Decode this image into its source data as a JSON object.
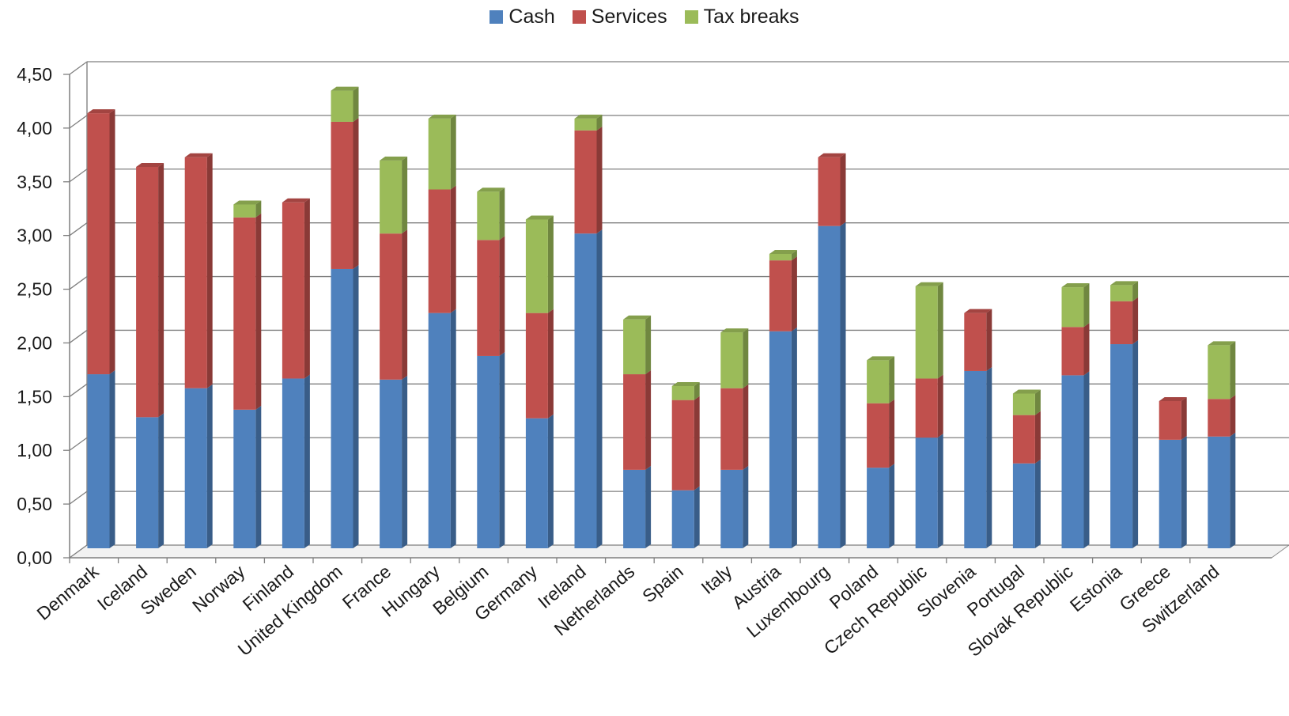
{
  "chart_data": {
    "type": "bar",
    "stacked": true,
    "style": "3d-column",
    "categories": [
      "Denmark",
      "Iceland",
      "Sweden",
      "Norway",
      "Finland",
      "United Kingdom",
      "France",
      "Hungary",
      "Belgium",
      "Germany",
      "Ireland",
      "Netherlands",
      "Spain",
      "Italy",
      "Austria",
      "Luxembourg",
      "Poland",
      "Czech Republic",
      "Slovenia",
      "Portugal",
      "Slovak Republic",
      "Estonia",
      "Greece",
      "Switzerland"
    ],
    "series": [
      {
        "name": "Cash",
        "color": "#4F81BD",
        "values": [
          1.62,
          1.22,
          1.49,
          1.29,
          1.58,
          2.6,
          1.57,
          2.19,
          1.79,
          1.21,
          2.93,
          0.73,
          0.54,
          0.73,
          2.02,
          3.0,
          0.75,
          1.03,
          1.65,
          0.79,
          1.61,
          1.9,
          1.01,
          1.04
        ]
      },
      {
        "name": "Services",
        "color": "#C0504D",
        "values": [
          2.43,
          2.33,
          2.15,
          1.79,
          1.64,
          1.37,
          1.36,
          1.15,
          1.08,
          0.98,
          0.96,
          0.89,
          0.84,
          0.76,
          0.66,
          0.64,
          0.6,
          0.55,
          0.54,
          0.45,
          0.45,
          0.4,
          0.36,
          0.35
        ]
      },
      {
        "name": "Tax breaks",
        "color": "#9BBB59",
        "values": [
          0.0,
          0.0,
          0.0,
          0.12,
          0.0,
          0.29,
          0.68,
          0.66,
          0.45,
          0.87,
          0.11,
          0.51,
          0.13,
          0.52,
          0.06,
          0.0,
          0.4,
          0.86,
          0.0,
          0.2,
          0.37,
          0.15,
          0.0,
          0.5
        ]
      }
    ],
    "y_ticks": [
      "0,00",
      "0,50",
      "1,00",
      "1,50",
      "2,00",
      "2,50",
      "3,00",
      "3,50",
      "4,00",
      "4,50"
    ],
    "ylim": [
      0,
      4.5
    ],
    "grid": true,
    "legend_position": "top-center"
  }
}
